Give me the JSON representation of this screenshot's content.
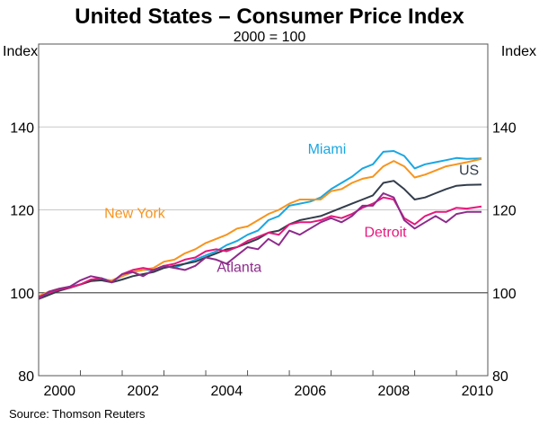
{
  "chart_data": {
    "type": "line",
    "title": "United States – Consumer Price Index",
    "subtitle": "2000 = 100",
    "ylabel_left": "Index",
    "ylabel_right": "Index",
    "xlabel": "",
    "source": "Source: Thomson Reuters",
    "xlim": [
      2000.0,
      2010.75
    ],
    "ylim": [
      80,
      160
    ],
    "yticks": [
      80,
      100,
      120,
      140
    ],
    "ytick_labels": [
      "80",
      "100",
      "120",
      "140"
    ],
    "xtick_labels": [
      "2000",
      "2002",
      "2004",
      "2006",
      "2008",
      "2010"
    ],
    "xtick_label_years": [
      2000,
      2002,
      2004,
      2006,
      2008,
      2010
    ],
    "reference_line": 100,
    "grid": "horizontal",
    "series": [
      {
        "name": "Miami",
        "color": "#1aa7e2",
        "label_pos": [
          2006.9,
          133.5
        ],
        "x": [
          2000.0,
          2000.25,
          2000.5,
          2000.75,
          2001.0,
          2001.25,
          2001.5,
          2001.75,
          2002.0,
          2002.25,
          2002.5,
          2002.75,
          2003.0,
          2003.25,
          2003.5,
          2003.75,
          2004.0,
          2004.25,
          2004.5,
          2004.75,
          2005.0,
          2005.25,
          2005.5,
          2005.75,
          2006.0,
          2006.25,
          2006.5,
          2006.75,
          2007.0,
          2007.25,
          2007.5,
          2007.75,
          2008.0,
          2008.25,
          2008.5,
          2008.75,
          2009.0,
          2009.25,
          2009.5,
          2009.75,
          2010.0,
          2010.25,
          2010.6
        ],
        "values": [
          98.8,
          100.0,
          100.8,
          101.5,
          102.0,
          103.0,
          103.5,
          102.8,
          104.0,
          105.0,
          105.5,
          105.5,
          106.5,
          106.0,
          107.0,
          108.0,
          109.0,
          110.0,
          111.5,
          112.5,
          114.0,
          115.0,
          117.5,
          118.5,
          121.0,
          121.5,
          122.0,
          123.0,
          125.0,
          126.5,
          128.0,
          130.0,
          131.0,
          134.0,
          134.2,
          133.0,
          130.0,
          131.0,
          131.5,
          132.0,
          132.5,
          132.3,
          132.4
        ]
      },
      {
        "name": "New York",
        "color": "#f7941d",
        "label_pos": [
          2002.3,
          118.0
        ],
        "x": [
          2000.0,
          2000.25,
          2000.5,
          2000.75,
          2001.0,
          2001.25,
          2001.5,
          2001.75,
          2002.0,
          2002.25,
          2002.5,
          2002.75,
          2003.0,
          2003.25,
          2003.5,
          2003.75,
          2004.0,
          2004.25,
          2004.5,
          2004.75,
          2005.0,
          2005.25,
          2005.5,
          2005.75,
          2006.0,
          2006.25,
          2006.5,
          2006.75,
          2007.0,
          2007.25,
          2007.5,
          2007.75,
          2008.0,
          2008.25,
          2008.5,
          2008.75,
          2009.0,
          2009.25,
          2009.5,
          2009.75,
          2010.0,
          2010.25,
          2010.6
        ],
        "values": [
          99.2,
          100.3,
          101.0,
          101.2,
          102.0,
          102.8,
          103.2,
          103.0,
          104.0,
          105.0,
          105.5,
          106.0,
          107.5,
          108.0,
          109.5,
          110.5,
          112.0,
          113.0,
          114.0,
          115.5,
          116.0,
          117.5,
          119.0,
          120.0,
          121.5,
          122.5,
          122.5,
          122.5,
          124.5,
          125.0,
          126.5,
          127.5,
          128.0,
          130.5,
          131.8,
          130.5,
          127.8,
          128.5,
          129.5,
          130.5,
          131.0,
          131.5,
          132.3
        ]
      },
      {
        "name": "US",
        "color": "#333d4b",
        "label_pos": [
          2010.3,
          128.5
        ],
        "x": [
          2000.0,
          2000.25,
          2000.5,
          2000.75,
          2001.0,
          2001.25,
          2001.5,
          2001.75,
          2002.0,
          2002.25,
          2002.5,
          2002.75,
          2003.0,
          2003.25,
          2003.5,
          2003.75,
          2004.0,
          2004.25,
          2004.5,
          2004.75,
          2005.0,
          2005.25,
          2005.5,
          2005.75,
          2006.0,
          2006.25,
          2006.5,
          2006.75,
          2007.0,
          2007.25,
          2007.5,
          2007.75,
          2008.0,
          2008.25,
          2008.5,
          2008.75,
          2009.0,
          2009.25,
          2009.5,
          2009.75,
          2010.0,
          2010.25,
          2010.6
        ],
        "values": [
          98.5,
          99.5,
          100.5,
          101.2,
          102.0,
          102.8,
          103.0,
          102.5,
          103.2,
          104.0,
          104.5,
          105.0,
          106.0,
          106.5,
          107.0,
          107.5,
          108.5,
          109.5,
          110.5,
          111.0,
          112.0,
          113.0,
          114.5,
          115.0,
          116.5,
          117.5,
          118.0,
          118.5,
          119.5,
          120.5,
          121.5,
          122.5,
          123.5,
          126.5,
          127.0,
          125.0,
          122.5,
          123.0,
          124.0,
          125.0,
          125.8,
          126.0,
          126.1
        ]
      },
      {
        "name": "Detroit",
        "color": "#e6177d",
        "label_pos": [
          2008.3,
          113.5
        ],
        "x": [
          2000.0,
          2000.25,
          2000.5,
          2000.75,
          2001.0,
          2001.25,
          2001.5,
          2001.75,
          2002.0,
          2002.25,
          2002.5,
          2002.75,
          2003.0,
          2003.25,
          2003.5,
          2003.75,
          2004.0,
          2004.25,
          2004.5,
          2004.75,
          2005.0,
          2005.25,
          2005.5,
          2005.75,
          2006.0,
          2006.25,
          2006.5,
          2006.75,
          2007.0,
          2007.25,
          2007.5,
          2007.75,
          2008.0,
          2008.25,
          2008.5,
          2008.75,
          2009.0,
          2009.25,
          2009.5,
          2009.75,
          2010.0,
          2010.25,
          2010.6
        ],
        "values": [
          99.0,
          100.0,
          100.8,
          101.3,
          102.0,
          103.2,
          103.5,
          102.5,
          104.5,
          105.5,
          106.0,
          105.5,
          106.5,
          107.0,
          108.0,
          108.5,
          110.0,
          110.5,
          110.0,
          111.0,
          112.5,
          113.5,
          114.5,
          114.0,
          116.5,
          117.0,
          117.0,
          117.5,
          118.5,
          118.0,
          119.0,
          120.5,
          121.5,
          123.0,
          122.5,
          118.0,
          116.5,
          118.5,
          119.5,
          119.5,
          120.5,
          120.3,
          120.8
        ]
      },
      {
        "name": "Atlanta",
        "color": "#8d2b8b",
        "label_pos": [
          2004.8,
          105.0
        ],
        "x": [
          2000.0,
          2000.25,
          2000.5,
          2000.75,
          2001.0,
          2001.25,
          2001.5,
          2001.75,
          2002.0,
          2002.25,
          2002.5,
          2002.75,
          2003.0,
          2003.25,
          2003.5,
          2003.75,
          2004.0,
          2004.25,
          2004.5,
          2004.75,
          2005.0,
          2005.25,
          2005.5,
          2005.75,
          2006.0,
          2006.25,
          2006.5,
          2006.75,
          2007.0,
          2007.25,
          2007.5,
          2007.75,
          2008.0,
          2008.25,
          2008.5,
          2008.75,
          2009.0,
          2009.25,
          2009.5,
          2009.75,
          2010.0,
          2010.25,
          2010.6
        ],
        "values": [
          98.5,
          100.3,
          101.0,
          101.5,
          103.0,
          104.0,
          103.5,
          102.5,
          104.5,
          105.0,
          104.0,
          105.5,
          106.5,
          106.0,
          105.5,
          106.5,
          108.5,
          108.0,
          107.0,
          109.0,
          111.0,
          110.5,
          113.0,
          111.5,
          115.0,
          114.0,
          115.5,
          117.0,
          118.0,
          117.0,
          118.5,
          121.0,
          121.0,
          124.0,
          123.0,
          117.5,
          115.5,
          117.0,
          118.5,
          117.0,
          119.0,
          119.5,
          119.5
        ]
      }
    ]
  }
}
